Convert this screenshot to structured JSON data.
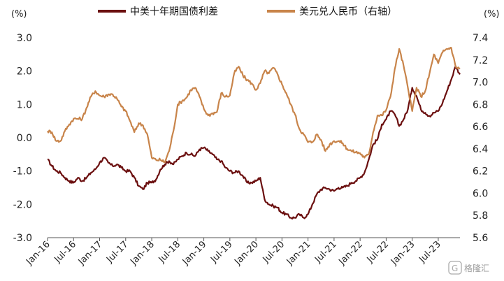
{
  "chart_data": {
    "type": "line",
    "left_unit": "(%)",
    "right_unit": "(%)",
    "legend_position": "top",
    "y_left": {
      "range": [
        -3.0,
        3.0
      ],
      "ticks": [
        "3.0",
        "2.0",
        "1.0",
        "0.0",
        "-1.0",
        "-2.0",
        "-3.0"
      ]
    },
    "y_right": {
      "range": [
        5.6,
        7.4
      ],
      "ticks": [
        "7.4",
        "7.2",
        "7.0",
        "6.8",
        "6.6",
        "6.4",
        "6.2",
        "6.0",
        "5.8",
        "5.6"
      ]
    },
    "x_ticks": [
      "Jan-16",
      "Jul-16",
      "Jan-17",
      "Jul-17",
      "Jan-18",
      "Jul-18",
      "Jan-19",
      "Jul-19",
      "Jan-20",
      "Jul-20",
      "Jan-21",
      "Jul-21",
      "Jan-22",
      "Jul-22",
      "Jan-23",
      "Jul-23"
    ],
    "x_range": [
      "2016-01",
      "2023-12"
    ],
    "series": [
      {
        "name": "中美十年期国债利差",
        "color": "#6b0f0f",
        "axis": "left",
        "points": [
          [
            "2016-01",
            -0.65
          ],
          [
            "2016-02",
            -0.85
          ],
          [
            "2016-03",
            -1.0
          ],
          [
            "2016-04",
            -1.05
          ],
          [
            "2016-05",
            -1.2
          ],
          [
            "2016-06",
            -1.3
          ],
          [
            "2016-07",
            -1.35
          ],
          [
            "2016-08",
            -1.2
          ],
          [
            "2016-09",
            -1.3
          ],
          [
            "2016-10",
            -1.2
          ],
          [
            "2016-11",
            -1.05
          ],
          [
            "2016-12",
            -0.95
          ],
          [
            "2017-01",
            -0.75
          ],
          [
            "2017-02",
            -0.6
          ],
          [
            "2017-03",
            -0.75
          ],
          [
            "2017-04",
            -0.85
          ],
          [
            "2017-05",
            -0.8
          ],
          [
            "2017-06",
            -0.9
          ],
          [
            "2017-07",
            -1.0
          ],
          [
            "2017-08",
            -1.0
          ],
          [
            "2017-09",
            -1.2
          ],
          [
            "2017-10",
            -1.45
          ],
          [
            "2017-11",
            -1.55
          ],
          [
            "2017-12",
            -1.35
          ],
          [
            "2018-01",
            -1.35
          ],
          [
            "2018-02",
            -1.25
          ],
          [
            "2018-03",
            -0.95
          ],
          [
            "2018-04",
            -0.8
          ],
          [
            "2018-05",
            -0.7
          ],
          [
            "2018-06",
            -0.8
          ],
          [
            "2018-07",
            -0.65
          ],
          [
            "2018-08",
            -0.55
          ],
          [
            "2018-09",
            -0.45
          ],
          [
            "2018-10",
            -0.5
          ],
          [
            "2018-11",
            -0.55
          ],
          [
            "2018-12",
            -0.35
          ],
          [
            "2019-01",
            -0.3
          ],
          [
            "2019-02",
            -0.4
          ],
          [
            "2019-03",
            -0.5
          ],
          [
            "2019-04",
            -0.65
          ],
          [
            "2019-05",
            -0.7
          ],
          [
            "2019-06",
            -0.9
          ],
          [
            "2019-07",
            -1.0
          ],
          [
            "2019-08",
            -1.05
          ],
          [
            "2019-09",
            -1.0
          ],
          [
            "2019-10",
            -1.15
          ],
          [
            "2019-11",
            -1.35
          ],
          [
            "2019-12",
            -1.35
          ],
          [
            "2020-01",
            -1.3
          ],
          [
            "2020-02",
            -1.2
          ],
          [
            "2020-03",
            -1.85
          ],
          [
            "2020-04",
            -2.0
          ],
          [
            "2020-05",
            -2.05
          ],
          [
            "2020-06",
            -2.1
          ],
          [
            "2020-07",
            -2.25
          ],
          [
            "2020-08",
            -2.3
          ],
          [
            "2020-09",
            -2.4
          ],
          [
            "2020-10",
            -2.4
          ],
          [
            "2020-11",
            -2.3
          ],
          [
            "2020-12",
            -2.4
          ],
          [
            "2021-01",
            -2.3
          ],
          [
            "2021-02",
            -2.0
          ],
          [
            "2021-03",
            -1.7
          ],
          [
            "2021-04",
            -1.55
          ],
          [
            "2021-05",
            -1.5
          ],
          [
            "2021-06",
            -1.55
          ],
          [
            "2021-07",
            -1.6
          ],
          [
            "2021-08",
            -1.5
          ],
          [
            "2021-09",
            -1.5
          ],
          [
            "2021-10",
            -1.45
          ],
          [
            "2021-11",
            -1.35
          ],
          [
            "2021-12",
            -1.3
          ],
          [
            "2022-01",
            -1.2
          ],
          [
            "2022-02",
            -1.05
          ],
          [
            "2022-03",
            -0.65
          ],
          [
            "2022-04",
            -0.2
          ],
          [
            "2022-05",
            -0.05
          ],
          [
            "2022-06",
            0.4
          ],
          [
            "2022-07",
            0.55
          ],
          [
            "2022-08",
            0.8
          ],
          [
            "2022-09",
            0.7
          ],
          [
            "2022-10",
            0.35
          ],
          [
            "2022-11",
            0.55
          ],
          [
            "2022-12",
            0.85
          ],
          [
            "2023-01",
            1.5
          ],
          [
            "2023-02",
            1.25
          ],
          [
            "2023-03",
            0.85
          ],
          [
            "2023-04",
            0.75
          ],
          [
            "2023-05",
            0.65
          ],
          [
            "2023-06",
            0.75
          ],
          [
            "2023-07",
            0.8
          ],
          [
            "2023-08",
            1.05
          ],
          [
            "2023-09",
            1.4
          ],
          [
            "2023-10",
            1.75
          ],
          [
            "2023-11",
            2.15
          ],
          [
            "2023-12",
            1.9
          ]
        ]
      },
      {
        "name": "美元兑人民币（右轴）",
        "color": "#c8844a",
        "axis": "right",
        "points": [
          [
            "2016-01",
            6.56
          ],
          [
            "2016-02",
            6.55
          ],
          [
            "2016-03",
            6.47
          ],
          [
            "2016-04",
            6.47
          ],
          [
            "2016-05",
            6.56
          ],
          [
            "2016-06",
            6.62
          ],
          [
            "2016-07",
            6.67
          ],
          [
            "2016-08",
            6.67
          ],
          [
            "2016-09",
            6.67
          ],
          [
            "2016-10",
            6.77
          ],
          [
            "2016-11",
            6.87
          ],
          [
            "2016-12",
            6.92
          ],
          [
            "2017-01",
            6.88
          ],
          [
            "2017-02",
            6.87
          ],
          [
            "2017-03",
            6.89
          ],
          [
            "2017-04",
            6.89
          ],
          [
            "2017-05",
            6.85
          ],
          [
            "2017-06",
            6.78
          ],
          [
            "2017-07",
            6.74
          ],
          [
            "2017-08",
            6.65
          ],
          [
            "2017-09",
            6.55
          ],
          [
            "2017-10",
            6.63
          ],
          [
            "2017-11",
            6.61
          ],
          [
            "2017-12",
            6.53
          ],
          [
            "2018-01",
            6.32
          ],
          [
            "2018-02",
            6.3
          ],
          [
            "2018-03",
            6.3
          ],
          [
            "2018-04",
            6.28
          ],
          [
            "2018-05",
            6.38
          ],
          [
            "2018-06",
            6.56
          ],
          [
            "2018-07",
            6.8
          ],
          [
            "2018-08",
            6.83
          ],
          [
            "2018-09",
            6.86
          ],
          [
            "2018-10",
            6.93
          ],
          [
            "2018-11",
            6.95
          ],
          [
            "2018-12",
            6.87
          ],
          [
            "2019-01",
            6.76
          ],
          [
            "2019-02",
            6.7
          ],
          [
            "2019-03",
            6.72
          ],
          [
            "2019-04",
            6.73
          ],
          [
            "2019-05",
            6.9
          ],
          [
            "2019-06",
            6.87
          ],
          [
            "2019-07",
            6.88
          ],
          [
            "2019-08",
            7.08
          ],
          [
            "2019-09",
            7.14
          ],
          [
            "2019-10",
            7.06
          ],
          [
            "2019-11",
            7.02
          ],
          [
            "2019-12",
            6.99
          ],
          [
            "2020-01",
            6.93
          ],
          [
            "2020-02",
            6.99
          ],
          [
            "2020-03",
            7.1
          ],
          [
            "2020-04",
            7.08
          ],
          [
            "2020-05",
            7.13
          ],
          [
            "2020-06",
            7.07
          ],
          [
            "2020-07",
            6.98
          ],
          [
            "2020-08",
            6.9
          ],
          [
            "2020-09",
            6.8
          ],
          [
            "2020-10",
            6.71
          ],
          [
            "2020-11",
            6.58
          ],
          [
            "2020-12",
            6.53
          ],
          [
            "2021-01",
            6.46
          ],
          [
            "2021-02",
            6.46
          ],
          [
            "2021-03",
            6.53
          ],
          [
            "2021-04",
            6.48
          ],
          [
            "2021-05",
            6.38
          ],
          [
            "2021-06",
            6.44
          ],
          [
            "2021-07",
            6.47
          ],
          [
            "2021-08",
            6.47
          ],
          [
            "2021-09",
            6.45
          ],
          [
            "2021-10",
            6.4
          ],
          [
            "2021-11",
            6.38
          ],
          [
            "2021-12",
            6.37
          ],
          [
            "2022-01",
            6.36
          ],
          [
            "2022-02",
            6.32
          ],
          [
            "2022-03",
            6.35
          ],
          [
            "2022-04",
            6.55
          ],
          [
            "2022-05",
            6.7
          ],
          [
            "2022-06",
            6.7
          ],
          [
            "2022-07",
            6.75
          ],
          [
            "2022-08",
            6.87
          ],
          [
            "2022-09",
            7.12
          ],
          [
            "2022-10",
            7.3
          ],
          [
            "2022-11",
            7.15
          ],
          [
            "2022-12",
            6.95
          ],
          [
            "2023-01",
            6.74
          ],
          [
            "2023-02",
            6.95
          ],
          [
            "2023-03",
            6.87
          ],
          [
            "2023-04",
            6.92
          ],
          [
            "2023-05",
            7.08
          ],
          [
            "2023-06",
            7.25
          ],
          [
            "2023-07",
            7.17
          ],
          [
            "2023-08",
            7.27
          ],
          [
            "2023-09",
            7.3
          ],
          [
            "2023-10",
            7.31
          ],
          [
            "2023-11",
            7.14
          ],
          [
            "2023-12",
            7.12
          ]
        ]
      }
    ]
  },
  "watermark": {
    "icon": "g-logo-icon",
    "text": "格隆汇"
  }
}
